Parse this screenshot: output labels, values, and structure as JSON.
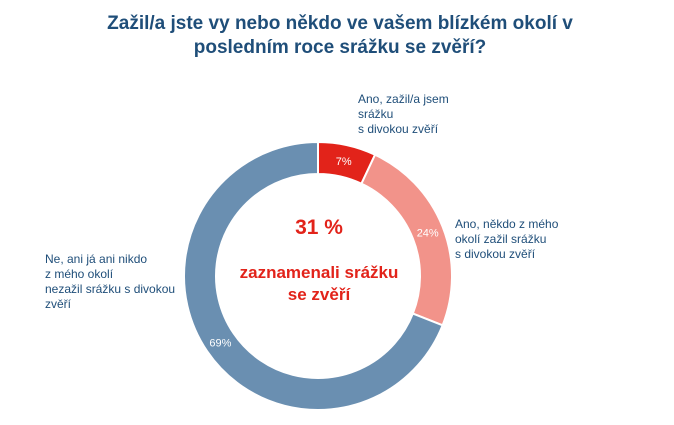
{
  "title": "Zažil/a jste vy nebo někdo ve vašem blízkém okolí v posledním roce srážku se zvěří?",
  "center": {
    "value": "31 %",
    "note": "zaznamenali srážku se zvěří"
  },
  "chart_data": {
    "type": "pie",
    "donut": true,
    "title": "Zažil/a jste vy nebo někdo ve vašem blízkém okolí v posledním roce srážku se zvěří?",
    "slices": [
      {
        "label": "Ano, zažil/a jsem srážku s divokou zvěří",
        "value": 7,
        "data_label": "7%",
        "color": "#e2231a"
      },
      {
        "label": "Ano, někdo z mého okolí zažil srážku s divokou zvěří",
        "value": 24,
        "data_label": "24%",
        "color": "#f2938a"
      },
      {
        "label": "Ne, ani já ani nikdo z mého okolí nezažil srážku s divokou zvěří",
        "value": 69,
        "data_label": "69%",
        "color": "#6a8fb1"
      }
    ]
  }
}
